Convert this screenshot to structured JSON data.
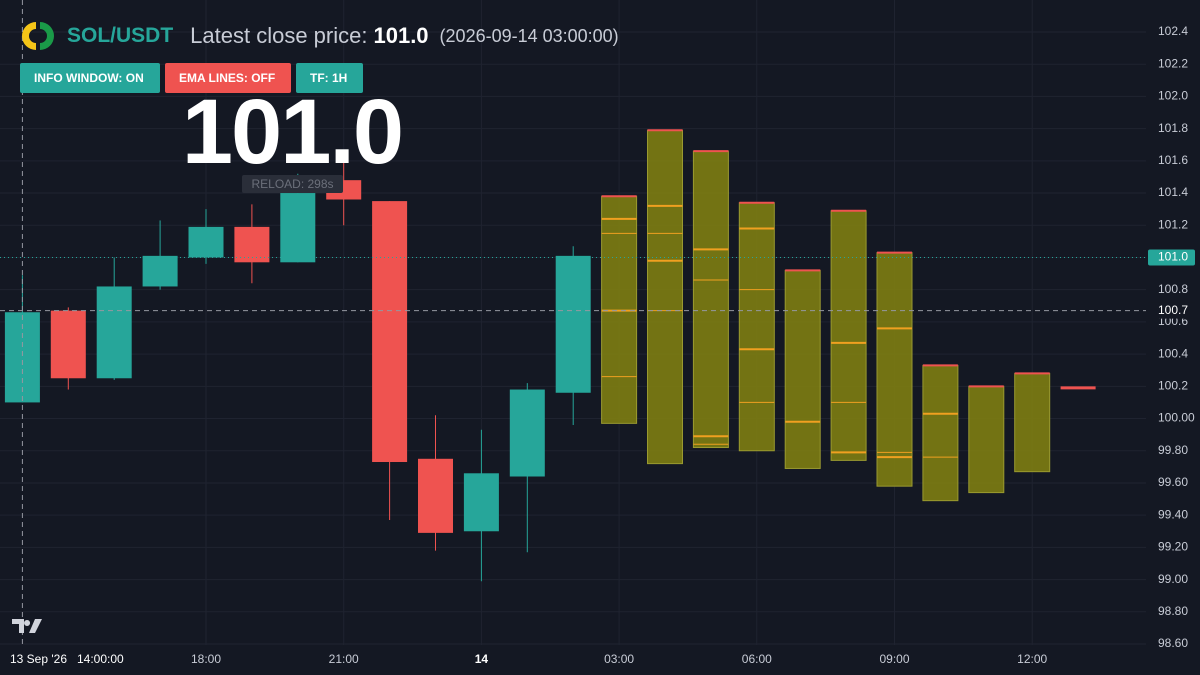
{
  "chart_data": {
    "type": "candlestick",
    "symbol": "SOL/USDT",
    "header_label": "Latest close price:",
    "header_time": "(2026-09-14 03:00:00)",
    "last_price": {
      "value": 101.0,
      "label": "101.0"
    },
    "reload": "RELOAD: 298s",
    "buttons": [
      "INFO WINDOW: ON",
      "EMA LINES: OFF",
      "TF: 1H"
    ],
    "crosshair": {
      "date": "13 Sep '26",
      "time": "14:00:00",
      "price": {
        "value": 100.67,
        "label": "100.7"
      }
    },
    "categories": [
      null,
      null,
      null,
      null,
      "18:00",
      null,
      null,
      "21:00",
      null,
      null,
      "14",
      null,
      null,
      "03:00",
      null,
      null,
      "06:00",
      null,
      null,
      "09:00",
      null,
      null,
      "12:00",
      null
    ],
    "up_color": "#26a69a",
    "down_color": "#ef5350",
    "open": [
      100.1,
      100.67,
      100.25,
      100.82,
      101.0,
      101.19,
      100.97,
      101.48,
      101.35,
      99.75,
      99.3,
      99.64,
      100.16,
      null,
      null,
      null,
      null,
      null,
      null,
      null,
      null,
      null,
      null,
      null
    ],
    "high": [
      100.89,
      100.69,
      101.0,
      101.23,
      101.3,
      101.33,
      101.52,
      101.61,
      101.35,
      100.02,
      99.93,
      100.22,
      101.07,
      null,
      null,
      null,
      null,
      null,
      null,
      null,
      null,
      null,
      null,
      null
    ],
    "low": [
      100.1,
      100.18,
      100.24,
      100.8,
      100.96,
      100.84,
      100.97,
      101.2,
      99.37,
      99.18,
      98.99,
      99.17,
      99.96,
      null,
      null,
      null,
      null,
      null,
      null,
      null,
      null,
      null,
      null,
      null
    ],
    "close": [
      100.66,
      100.25,
      100.82,
      101.01,
      101.19,
      100.97,
      101.4,
      101.36,
      99.73,
      99.29,
      99.66,
      100.18,
      101.01,
      null,
      null,
      null,
      null,
      null,
      null,
      null,
      null,
      null,
      null,
      null
    ],
    "forecast": {
      "color": "#7d7d12",
      "edge_color": "#ef5350",
      "level_color": "#f0a020",
      "top": [
        null,
        null,
        null,
        null,
        null,
        null,
        null,
        null,
        null,
        null,
        null,
        null,
        null,
        101.38,
        101.79,
        101.66,
        101.34,
        100.92,
        101.29,
        101.03,
        100.33,
        100.2,
        100.28,
        100.19
      ],
      "bottom": [
        null,
        null,
        null,
        null,
        null,
        null,
        null,
        null,
        null,
        null,
        null,
        null,
        null,
        99.97,
        99.72,
        99.82,
        99.8,
        99.69,
        99.74,
        99.58,
        99.49,
        99.54,
        99.67,
        100.19
      ],
      "levels": [
        [],
        [],
        [],
        [],
        [],
        [],
        [],
        [],
        [],
        [],
        [],
        [],
        [],
        [
          101.24,
          101.15,
          100.67,
          100.26
        ],
        [
          101.32,
          101.15,
          100.98,
          100.67
        ],
        [
          101.05,
          100.86,
          99.89,
          99.84
        ],
        [
          101.18,
          100.8,
          100.43,
          100.1
        ],
        [
          99.98
        ],
        [
          100.47,
          100.1,
          99.79
        ],
        [
          100.56,
          99.79,
          99.76
        ],
        [
          100.03,
          99.76
        ],
        [],
        [],
        []
      ]
    },
    "ylim": [
      98.6,
      102.4
    ],
    "yticks": [
      102.4,
      102.2,
      {
        "value": 102.0,
        "label": "102.0"
      },
      101.8,
      101.6,
      101.4,
      101.2,
      {
        "value": 101.0,
        "label": "101.0"
      },
      100.8,
      100.6,
      100.4,
      100.2,
      {
        "value": 100.0,
        "label": "100.00"
      },
      {
        "value": 99.8,
        "label": "99.80"
      },
      {
        "value": 99.6,
        "label": "99.60"
      },
      {
        "value": 99.4,
        "label": "99.40"
      },
      {
        "value": 99.2,
        "label": "99.20"
      },
      {
        "value": 99.0,
        "label": "99.00"
      },
      {
        "value": 98.8,
        "label": "98.80"
      },
      {
        "value": 98.6,
        "label": "98.60"
      }
    ],
    "grid": true
  }
}
